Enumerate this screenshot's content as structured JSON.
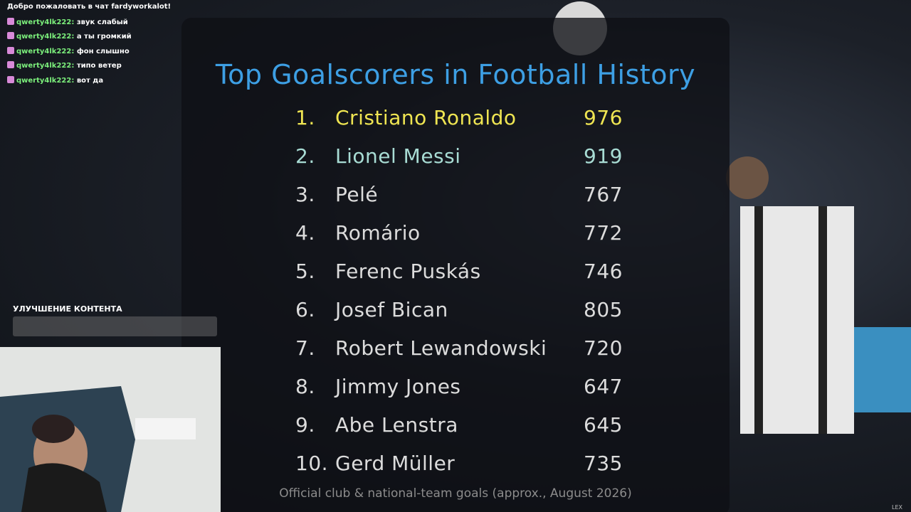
{
  "chat": {
    "welcome": "Добро пожаловать в чат fardyworkalot!",
    "messages": [
      {
        "user": "qwerty4lk222:",
        "text": "звук слабый"
      },
      {
        "user": "qwerty4lk222:",
        "text": "а ты громкий"
      },
      {
        "user": "qwerty4lk222:",
        "text": "фон слышно"
      },
      {
        "user": "qwerty4lk222:",
        "text": "типо ветер"
      },
      {
        "user": "qwerty4lk222:",
        "text": "вот да"
      }
    ]
  },
  "overlay": {
    "label": "УЛУЧШЕНИЕ КОНТЕНТА",
    "corner": "LEX"
  },
  "table": {
    "title": "Top Goalscorers in Football History",
    "rows": [
      [
        "1.",
        "Cristiano Ronaldo",
        976
      ],
      [
        "2.",
        "Lionel Messi",
        919
      ],
      [
        "3.",
        "Pelé",
        767
      ],
      [
        "4.",
        "Romário",
        772
      ],
      [
        "5.",
        "Ferenc Puskás",
        746
      ],
      [
        "6.",
        "Josef Bican",
        805
      ],
      [
        "7.",
        "Robert Lewandowski",
        720
      ],
      [
        "8.",
        "Jimmy Jones",
        647
      ],
      [
        "9.",
        "Abe Lenstra",
        645
      ],
      [
        "10.",
        "Gerd Müller",
        735
      ]
    ],
    "footnote": "Official club & national-team goals (approx., August 2026)"
  }
}
